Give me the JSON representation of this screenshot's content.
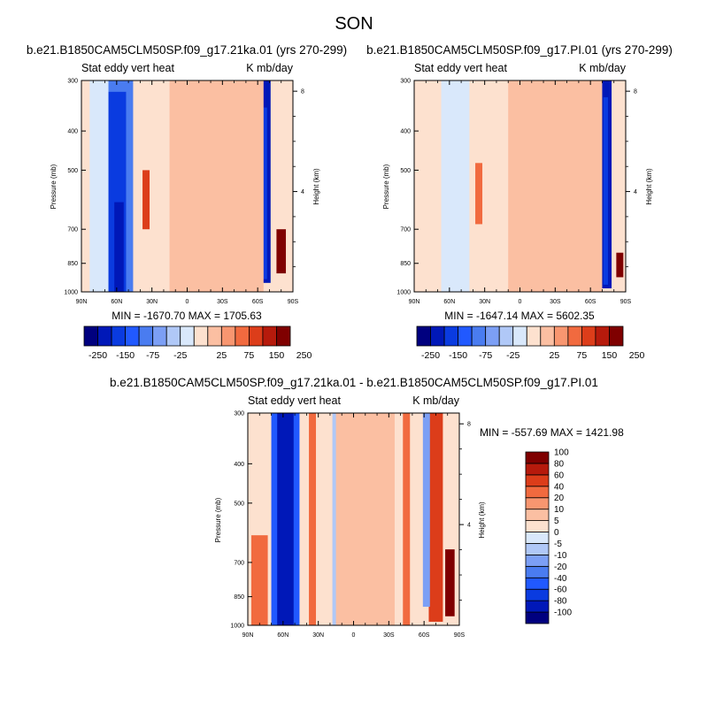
{
  "page": {
    "title": "SON"
  },
  "colors": {
    "palette": [
      "#00007f",
      "#0018b8",
      "#0a3be0",
      "#2159ff",
      "#4a7cf0",
      "#7c9ff5",
      "#b0c8f7",
      "#d9e8fb",
      "#fde1cf",
      "#fbbfa2",
      "#f89670",
      "#f16a3f",
      "#dc3d1a",
      "#b61a0c",
      "#7f0000"
    ]
  },
  "panels": [
    {
      "case_title": "b.e21.B1850CAM5CLM50SP.f09_g17.21ka.01 (yrs 270-299)",
      "left_label": "Stat eddy vert heat",
      "right_label": "K mb/day",
      "ylabel": "Pressure (mb)",
      "ylabel_right": "Height (km)",
      "stats": "MIN = -1670.70  MAX = 1705.63",
      "colorbar": {
        "orientation": "horizontal",
        "levels": [
          "-250",
          "-200",
          "-150",
          "-100",
          "-75",
          "-50",
          "-25",
          "-10",
          "10",
          "25",
          "50",
          "75",
          "100",
          "150",
          "200",
          "250"
        ],
        "shown_labels": [
          "-250",
          "-150",
          "-75",
          "-25",
          "25",
          "75",
          "150",
          "250"
        ]
      },
      "chart_data": {
        "type": "heatmap",
        "x_ticks": [
          "90N",
          "60N",
          "30N",
          "0",
          "30S",
          "60S",
          "90S"
        ],
        "y_ticks": [
          "300",
          "400",
          "500",
          "700",
          "850",
          "1000"
        ],
        "y_tick_values": [
          300,
          400,
          500,
          700,
          850,
          1000
        ],
        "height_ticks": [
          "8",
          "4"
        ],
        "height_tick_values": [
          8,
          4
        ],
        "xlim": [
          90,
          -90
        ],
        "ylim": [
          1000,
          300
        ],
        "y_scale": "log",
        "features": [
          {
            "lat": -65,
            "half_width": 6,
            "value": -250,
            "p_top": 300,
            "p_bot": 950
          },
          {
            "lat": -65,
            "half_width": 3,
            "value": -200,
            "p_top": 350,
            "p_bot": 930
          },
          {
            "lat": -80,
            "half_width": 4,
            "value": 150,
            "p_top": 700,
            "p_bot": 900
          },
          {
            "lat": 60,
            "half_width": 14,
            "value": -100,
            "p_top": 300,
            "p_bot": 1000
          },
          {
            "lat": 60,
            "half_width": 8,
            "value": -200,
            "p_top": 320,
            "p_bot": 1000
          },
          {
            "lat": 58,
            "half_width": 4,
            "value": -250,
            "p_top": 600,
            "p_bot": 1000
          },
          {
            "lat": 75,
            "half_width": 8,
            "value": -25,
            "p_top": 300,
            "p_bot": 1000
          },
          {
            "lat": 35,
            "half_width": 3,
            "value": 75,
            "p_top": 500,
            "p_bot": 700
          },
          {
            "lat": -25,
            "half_width": 40,
            "value": 10,
            "p_top": 300,
            "p_bot": 1000
          }
        ]
      }
    },
    {
      "case_title": "b.e21.B1850CAM5CLM50SP.f09_g17.PI.01 (yrs 270-299)",
      "left_label": "Stat eddy vert heat",
      "right_label": "K mb/day",
      "ylabel": "Pressure (mb)",
      "ylabel_right": "Height (km)",
      "stats": "MIN = -1647.14  MAX = 5602.35",
      "colorbar": {
        "orientation": "horizontal",
        "levels": [
          "-250",
          "-200",
          "-150",
          "-100",
          "-75",
          "-50",
          "-25",
          "-10",
          "10",
          "25",
          "50",
          "75",
          "100",
          "150",
          "200",
          "250"
        ],
        "shown_labels": [
          "-250",
          "-150",
          "-75",
          "-25",
          "25",
          "75",
          "150",
          "250"
        ]
      },
      "chart_data": {
        "type": "heatmap",
        "x_ticks": [
          "90N",
          "60N",
          "30N",
          "0",
          "30S",
          "60S",
          "90S"
        ],
        "y_ticks": [
          "300",
          "400",
          "500",
          "700",
          "850",
          "1000"
        ],
        "y_tick_values": [
          300,
          400,
          500,
          700,
          850,
          1000
        ],
        "height_ticks": [
          "8",
          "4"
        ],
        "height_tick_values": [
          8,
          4
        ],
        "xlim": [
          90,
          -90
        ],
        "ylim": [
          1000,
          300
        ],
        "y_scale": "log",
        "features": [
          {
            "lat": -73,
            "half_width": 5,
            "value": -250,
            "p_top": 300,
            "p_bot": 980
          },
          {
            "lat": -73,
            "half_width": 2,
            "value": -200,
            "p_top": 330,
            "p_bot": 960
          },
          {
            "lat": -85,
            "half_width": 3,
            "value": 200,
            "p_top": 800,
            "p_bot": 920
          },
          {
            "lat": 55,
            "half_width": 12,
            "value": -25,
            "p_top": 300,
            "p_bot": 1000
          },
          {
            "lat": 35,
            "half_width": 3,
            "value": 50,
            "p_top": 480,
            "p_bot": 680
          },
          {
            "lat": -30,
            "half_width": 40,
            "value": 10,
            "p_top": 300,
            "p_bot": 1000
          }
        ]
      }
    },
    {
      "case_title": "b.e21.B1850CAM5CLM50SP.f09_g17.21ka.01 - b.e21.B1850CAM5CLM50SP.f09_g17.PI.01",
      "left_label": "Stat eddy vert heat",
      "right_label": "K mb/day",
      "ylabel": "Pressure (mb)",
      "ylabel_right": "Height (km)",
      "stats": "MIN = -557.69  MAX = 1421.98",
      "colorbar": {
        "orientation": "vertical",
        "levels": [
          "-100",
          "-80",
          "-60",
          "-40",
          "-20",
          "-10",
          "-5",
          "0",
          "5",
          "10",
          "20",
          "40",
          "60",
          "80",
          "100"
        ],
        "shown_labels": [
          "-100",
          "-80",
          "-60",
          "-40",
          "-20",
          "-10",
          "-5",
          "0",
          "5",
          "10",
          "20",
          "40",
          "60",
          "80",
          "100"
        ]
      },
      "chart_data": {
        "type": "heatmap",
        "x_ticks": [
          "90N",
          "60N",
          "30N",
          "0",
          "30S",
          "60S",
          "90S"
        ],
        "y_ticks": [
          "300",
          "400",
          "500",
          "700",
          "850",
          "1000"
        ],
        "y_tick_values": [
          300,
          400,
          500,
          700,
          850,
          1000
        ],
        "height_ticks": [
          "8",
          "4"
        ],
        "height_tick_values": [
          8,
          4
        ],
        "xlim": [
          90,
          -90
        ],
        "ylim": [
          1000,
          300
        ],
        "y_scale": "log",
        "features": [
          {
            "lat": 58,
            "half_width": 12,
            "value": -60,
            "p_top": 300,
            "p_bot": 1000
          },
          {
            "lat": 58,
            "half_width": 7,
            "value": -100,
            "p_top": 300,
            "p_bot": 1000
          },
          {
            "lat": 80,
            "half_width": 7,
            "value": 20,
            "p_top": 600,
            "p_bot": 1000
          },
          {
            "lat": -70,
            "half_width": 6,
            "value": 40,
            "p_top": 300,
            "p_bot": 980
          },
          {
            "lat": -82,
            "half_width": 4,
            "value": 80,
            "p_top": 650,
            "p_bot": 950
          },
          {
            "lat": -62,
            "half_width": 3,
            "value": -20,
            "p_top": 300,
            "p_bot": 900
          },
          {
            "lat": 35,
            "half_width": 3,
            "value": 20,
            "p_top": 300,
            "p_bot": 1000
          },
          {
            "lat": 15,
            "half_width": 3,
            "value": -10,
            "p_top": 300,
            "p_bot": 1000
          },
          {
            "lat": -10,
            "half_width": 25,
            "value": 5,
            "p_top": 300,
            "p_bot": 1000
          },
          {
            "lat": -45,
            "half_width": 3,
            "value": 20,
            "p_top": 300,
            "p_bot": 1000
          }
        ]
      }
    }
  ]
}
